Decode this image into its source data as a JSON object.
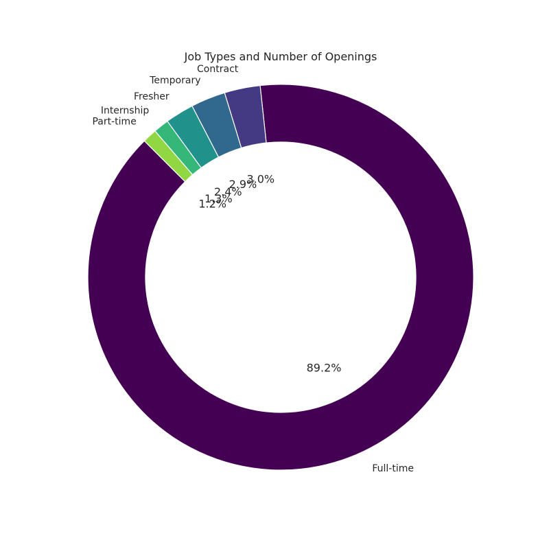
{
  "chart_data": {
    "type": "pie",
    "subtype": "donut",
    "title": "Job Types and Number of Openings",
    "categories": [
      "Full-time",
      "Contract",
      "Temporary",
      "Fresher",
      "Internship",
      "Part-time"
    ],
    "values": [
      89.2,
      3.0,
      2.9,
      2.4,
      1.3,
      1.2
    ],
    "value_labels": [
      "89.2%",
      "3.0%",
      "2.9%",
      "2.4%",
      "1.3%",
      "1.2%"
    ],
    "colors": [
      "#440154",
      "#443983",
      "#31688e",
      "#21918c",
      "#35b779",
      "#90d743"
    ],
    "legend": "none"
  }
}
